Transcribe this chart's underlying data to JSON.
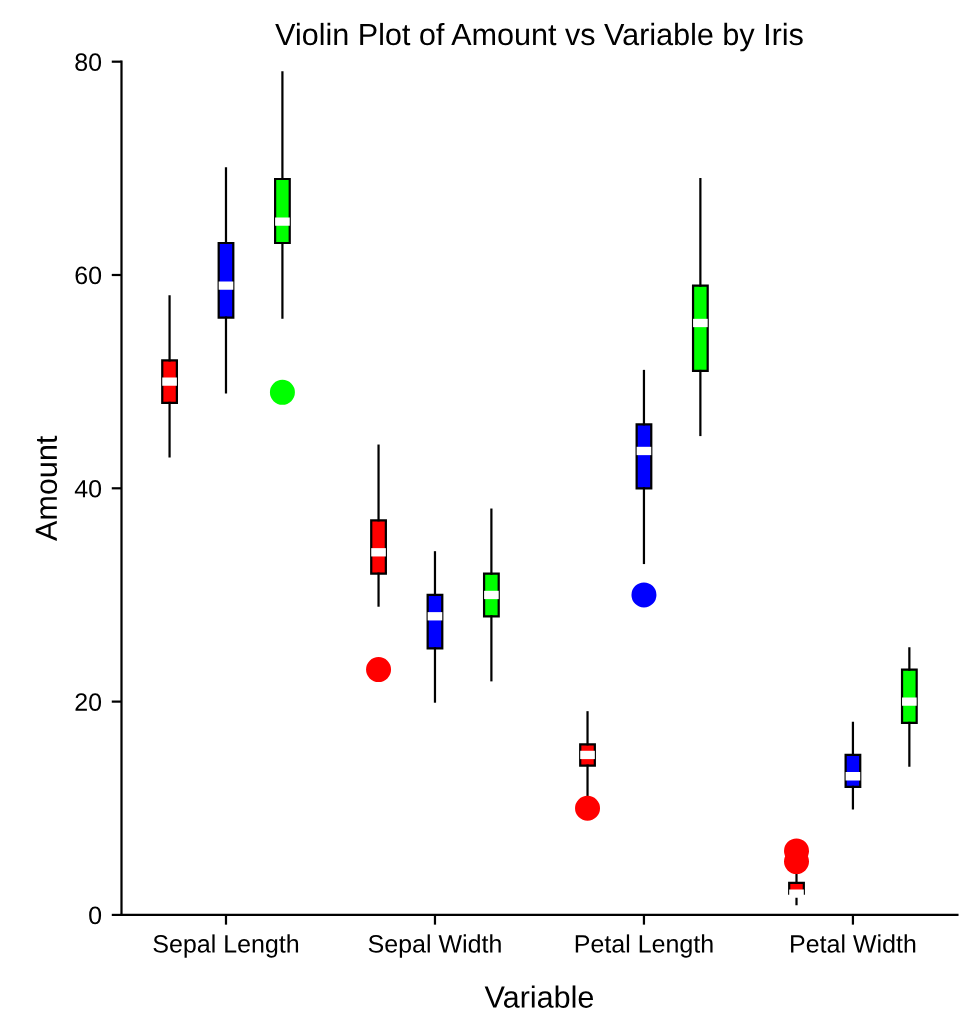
{
  "chart_data": {
    "type": "box",
    "title": "Violin Plot of Amount vs Variable by Iris",
    "xlabel": "Variable",
    "ylabel": "Amount",
    "categories": [
      "Sepal Length",
      "Sepal Width",
      "Petal Length",
      "Petal Width"
    ],
    "ylim": [
      0,
      80
    ],
    "yticks": [
      0,
      20,
      40,
      60,
      80
    ],
    "grid": false,
    "legend": false,
    "series": [
      {
        "color": "#ff0000",
        "boxes": [
          {
            "low": 43,
            "q1": 48,
            "median": 50,
            "q3": 52,
            "high": 58
          },
          {
            "low": 29,
            "q1": 32,
            "median": 34,
            "q3": 37,
            "high": 44,
            "outliers": [
              23
            ]
          },
          {
            "low": 11,
            "q1": 14,
            "median": 15,
            "q3": 16,
            "high": 19,
            "outliers": [
              10
            ]
          },
          {
            "low": 1,
            "q1": 2,
            "median": 2,
            "q3": 3,
            "high": 4,
            "outliers": [
              5,
              6
            ]
          }
        ]
      },
      {
        "color": "#0000ff",
        "boxes": [
          {
            "low": 49,
            "q1": 56,
            "median": 59,
            "q3": 63,
            "high": 70
          },
          {
            "low": 20,
            "q1": 25,
            "median": 28,
            "q3": 30,
            "high": 34
          },
          {
            "low": 33,
            "q1": 40,
            "median": 43.5,
            "q3": 46,
            "high": 51,
            "outliers": [
              30
            ]
          },
          {
            "low": 10,
            "q1": 12,
            "median": 13,
            "q3": 15,
            "high": 18
          }
        ]
      },
      {
        "color": "#00ff00",
        "boxes": [
          {
            "low": 56,
            "q1": 63,
            "median": 65,
            "q3": 69,
            "high": 79,
            "outliers": [
              49
            ]
          },
          {
            "low": 22,
            "q1": 28,
            "median": 30,
            "q3": 32,
            "high": 38
          },
          {
            "low": 45,
            "q1": 51,
            "median": 55.5,
            "q3": 59,
            "high": 69
          },
          {
            "low": 14,
            "q1": 18,
            "median": 20,
            "q3": 23,
            "high": 25
          }
        ]
      }
    ]
  }
}
